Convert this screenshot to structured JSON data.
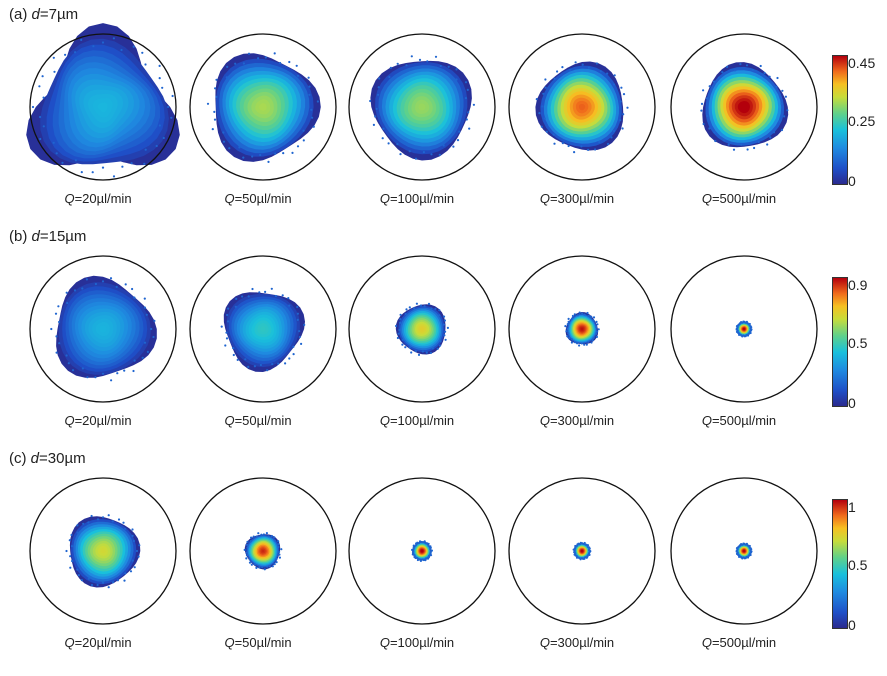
{
  "panels": [
    {
      "prefix": "(a) ",
      "var": "d",
      "value": "=7µm",
      "colorbar": {
        "ticks": [
          "0.45",
          "0.25",
          "0"
        ],
        "range": [
          0,
          0.48
        ]
      },
      "cells": [
        {
          "q_var": "Q",
          "q_value": "=20µl/min",
          "spread": 0.92,
          "peak": 0.18,
          "irregular": 0.25
        },
        {
          "q_var": "Q",
          "q_value": "=50µl/min",
          "spread": 0.72,
          "peak": 0.3,
          "irregular": 0.1
        },
        {
          "q_var": "Q",
          "q_value": "=100µl/min",
          "spread": 0.68,
          "peak": 0.29,
          "irregular": 0.08
        },
        {
          "q_var": "Q",
          "q_value": "=300µl/min",
          "spread": 0.6,
          "peak": 0.42,
          "irregular": 0.07
        },
        {
          "q_var": "Q",
          "q_value": "=500µl/min",
          "spread": 0.58,
          "peak": 0.48,
          "irregular": 0.07
        }
      ]
    },
    {
      "prefix": "(b) ",
      "var": "d",
      "value": "=15µm",
      "colorbar": {
        "ticks": [
          "0.9",
          "0.5",
          "0"
        ],
        "range": [
          0,
          0.95
        ]
      },
      "cells": [
        {
          "q_var": "Q",
          "q_value": "=20µl/min",
          "spread": 0.68,
          "peak": 0.35,
          "irregular": 0.1
        },
        {
          "q_var": "Q",
          "q_value": "=50µl/min",
          "spread": 0.54,
          "peak": 0.42,
          "irregular": 0.1
        },
        {
          "q_var": "Q",
          "q_value": "=100µl/min",
          "spread": 0.34,
          "peak": 0.68,
          "irregular": 0.06
        },
        {
          "q_var": "Q",
          "q_value": "=300µl/min",
          "spread": 0.22,
          "peak": 0.92,
          "irregular": 0.06
        },
        {
          "q_var": "Q",
          "q_value": "=500µl/min",
          "spread": 0.1,
          "peak": 0.95,
          "irregular": 0.05
        }
      ]
    },
    {
      "prefix": "(c) ",
      "var": "d",
      "value": "=30µm",
      "colorbar": {
        "ticks": [
          "1",
          "0.5",
          "0"
        ],
        "range": [
          0,
          1
        ]
      },
      "cells": [
        {
          "q_var": "Q",
          "q_value": "=20µl/min",
          "spread": 0.48,
          "peak": 0.68,
          "irregular": 0.07
        },
        {
          "q_var": "Q",
          "q_value": "=50µl/min",
          "spread": 0.24,
          "peak": 0.94,
          "irregular": 0.06
        },
        {
          "q_var": "Q",
          "q_value": "=100µl/min",
          "spread": 0.13,
          "peak": 1.0,
          "irregular": 0.05
        },
        {
          "q_var": "Q",
          "q_value": "=300µl/min",
          "spread": 0.11,
          "peak": 1.0,
          "irregular": 0.04
        },
        {
          "q_var": "Q",
          "q_value": "=500µl/min",
          "spread": 0.1,
          "peak": 1.0,
          "irregular": 0.04
        }
      ]
    }
  ],
  "chart_data": {
    "type": "heatmap",
    "rows": [
      "d=7µm",
      "d=15µm",
      "d=30µm"
    ],
    "columns": [
      "Q=20µl/min",
      "Q=50µl/min",
      "Q=100µl/min",
      "Q=300µl/min",
      "Q=500µl/min"
    ],
    "colorbar_ticks": [
      [
        "0.45",
        "0.25",
        "0"
      ],
      [
        "0.9",
        "0.5",
        "0"
      ],
      [
        "1",
        "0.5",
        "0"
      ]
    ],
    "peak_values": [
      [
        0.18,
        0.3,
        0.29,
        0.42,
        0.48
      ],
      [
        0.35,
        0.42,
        0.68,
        0.92,
        0.95
      ],
      [
        0.68,
        0.94,
        1.0,
        1.0,
        1.0
      ]
    ],
    "colormap": "jet"
  }
}
